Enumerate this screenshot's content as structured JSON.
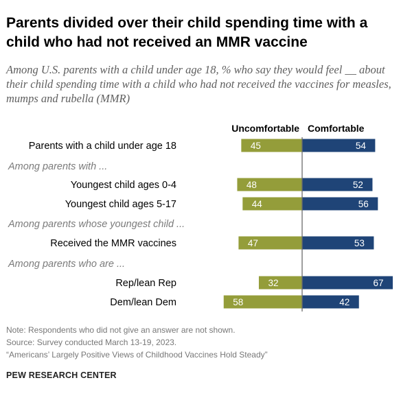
{
  "title": "Parents divided over their child spending time with a child who had not received an MMR vaccine",
  "subtitle": "Among U.S. parents with a child under age 18, % who say they would feel __ about their child spending time with a child who had not received the vaccines for measles, mumps and rubella (MMR)",
  "colors": {
    "uncomfortable": "#949d3a",
    "comfortable": "#1f4477",
    "axis": "#6b6b6b",
    "group_label": "#7b7b7b"
  },
  "chart_data": {
    "type": "bar",
    "orientation": "horizontal-diverging",
    "series": [
      {
        "name": "Uncomfortable",
        "values": [
          45,
          48,
          44,
          47,
          32,
          58
        ]
      },
      {
        "name": "Comfortable",
        "values": [
          54,
          52,
          56,
          53,
          67,
          42
        ]
      }
    ],
    "rows": [
      {
        "kind": "category",
        "label": "Parents with a child under age 18",
        "values": [
          45,
          54
        ]
      },
      {
        "kind": "group",
        "label": "Among parents with ..."
      },
      {
        "kind": "category",
        "label": "Youngest child ages 0-4",
        "values": [
          48,
          52
        ]
      },
      {
        "kind": "category",
        "label": "Youngest child ages 5-17",
        "values": [
          44,
          56
        ]
      },
      {
        "kind": "group",
        "label": "Among parents whose youngest child ..."
      },
      {
        "kind": "category",
        "label": "Received the MMR vaccines",
        "values": [
          47,
          53
        ]
      },
      {
        "kind": "group",
        "label": "Among parents who are ..."
      },
      {
        "kind": "category",
        "label": "Rep/lean Rep",
        "values": [
          32,
          67
        ]
      },
      {
        "kind": "category",
        "label": "Dem/lean Dem",
        "values": [
          58,
          42
        ]
      }
    ]
  },
  "footer": {
    "note": "Note: Respondents who did not give an answer are not shown.",
    "source": "Source: Survey conducted March 13-19, 2023.",
    "report": "“Americans’ Largely Positive Views of Childhood Vaccines Hold Steady”"
  },
  "brand": "PEW RESEARCH CENTER"
}
